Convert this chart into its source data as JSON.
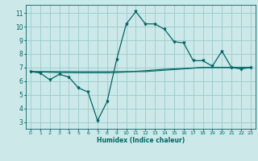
{
  "xlabel": "Humidex (Indice chaleur)",
  "x_values": [
    0,
    1,
    2,
    3,
    4,
    5,
    6,
    7,
    8,
    9,
    10,
    11,
    12,
    13,
    14,
    15,
    16,
    17,
    18,
    19,
    20,
    21,
    22,
    23
  ],
  "y_main": [
    6.7,
    6.6,
    6.1,
    6.5,
    6.3,
    5.5,
    5.2,
    3.1,
    4.5,
    7.6,
    10.2,
    11.1,
    10.2,
    10.2,
    9.8,
    8.9,
    8.8,
    7.5,
    7.5,
    7.1,
    8.2,
    7.0,
    6.9,
    7.0
  ],
  "y_trend1": [
    6.7,
    6.7,
    6.7,
    6.7,
    6.7,
    6.7,
    6.7,
    6.7,
    6.7,
    6.7,
    6.7,
    6.7,
    6.7,
    6.75,
    6.8,
    6.85,
    6.9,
    6.95,
    7.0,
    7.0,
    7.0,
    7.0,
    7.0,
    7.0
  ],
  "y_trend2": [
    6.7,
    6.68,
    6.65,
    6.63,
    6.62,
    6.61,
    6.61,
    6.61,
    6.61,
    6.63,
    6.67,
    6.72,
    6.77,
    6.82,
    6.87,
    6.9,
    6.93,
    6.97,
    7.0,
    7.0,
    7.0,
    7.0,
    7.0,
    7.0
  ],
  "ylim": [
    2.5,
    11.6
  ],
  "yticks": [
    3,
    4,
    5,
    6,
    7,
    8,
    9,
    10,
    11
  ],
  "bg_color": "#cce8e8",
  "grid_color": "#99cccc",
  "line_color": "#006666",
  "figsize": [
    3.2,
    2.0
  ],
  "dpi": 100
}
